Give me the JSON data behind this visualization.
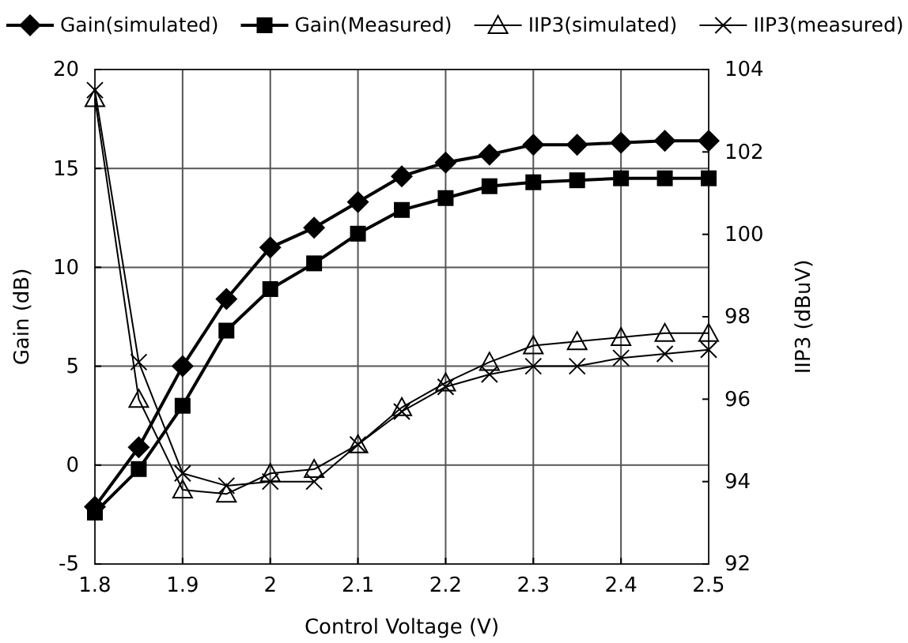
{
  "chart_data": {
    "type": "line",
    "xlabel": "Control Voltage (V)",
    "ylabel": "Gain (dB)",
    "y2label": "IIP3 (dBuV)",
    "x": [
      1.8,
      1.85,
      1.9,
      1.95,
      2.0,
      2.05,
      2.1,
      2.15,
      2.2,
      2.25,
      2.3,
      2.35,
      2.4,
      2.45,
      2.5
    ],
    "series": [
      {
        "name": "Gain(simulated)",
        "color": "#000000",
        "marker": "diamond",
        "values": [
          -2.1,
          0.9,
          5.0,
          8.4,
          11.0,
          12.0,
          13.3,
          14.6,
          15.3,
          15.7,
          16.2,
          16.2,
          16.3,
          16.4,
          16.4
        ]
      },
      {
        "name": "Gain(Measured)",
        "color": "#000000",
        "marker": "square",
        "values": [
          -2.4,
          -0.2,
          3.0,
          6.8,
          8.9,
          10.2,
          11.7,
          12.9,
          13.5,
          14.1,
          14.3,
          14.4,
          14.5,
          14.5,
          14.5
        ]
      },
      {
        "name": "IIP3(simulated)",
        "color": "#000000",
        "marker": "triangle",
        "axis": "y2",
        "values": [
          103.3,
          96.0,
          93.8,
          93.7,
          94.2,
          94.3,
          94.9,
          95.8,
          96.4,
          96.9,
          97.3,
          97.4,
          97.5,
          97.6,
          97.6
        ]
      },
      {
        "name": "IIP3(measured)",
        "color": "#000000",
        "marker": "cross",
        "axis": "y2",
        "values": [
          103.5,
          96.9,
          94.2,
          93.9,
          94.0,
          94.0,
          94.9,
          95.7,
          96.3,
          96.6,
          96.8,
          96.8,
          97.0,
          97.1,
          97.2
        ]
      }
    ],
    "xlim": [
      1.8,
      2.5
    ],
    "xticks": [
      1.8,
      1.9,
      2,
      2.1,
      2.2,
      2.3,
      2.4,
      2.5
    ],
    "ylim": [
      -5,
      20
    ],
    "yticks": [
      -5,
      0,
      5,
      10,
      15,
      20
    ],
    "y2lim": [
      92,
      104
    ],
    "y2ticks": [
      92,
      94,
      96,
      98,
      100,
      102,
      104
    ],
    "grid": true,
    "legend": "top",
    "line_style": "solid"
  }
}
